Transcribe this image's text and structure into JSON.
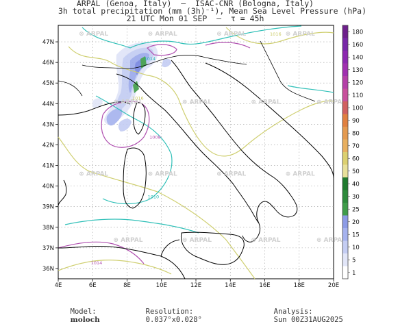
{
  "header": {
    "line1": "ARPAL (Genoa, Italy)  –  ISAC-CNR (Bologna, Italy)",
    "line2": "3h total precipitation (mm (3h)⁻¹), Mean Sea Level Pressure (hPa)",
    "line3": "21 UTC Mon 01 SEP  –  τ = 45h"
  },
  "footer": {
    "model_label": "Model:",
    "model_value": "moloch",
    "resolution_label": "Resolution:",
    "resolution_value": "0.037°x0.028°",
    "analysis_label": "Analysis:",
    "analysis_value": "Sun 00Z31AUG2025"
  },
  "watermark": "ARPAL",
  "map": {
    "lon_ticks": [
      "4E",
      "6E",
      "8E",
      "10E",
      "12E",
      "14E",
      "16E",
      "18E",
      "20E"
    ],
    "lat_ticks": [
      "47N",
      "46N",
      "45N",
      "44N",
      "43N",
      "42N",
      "41N",
      "40N",
      "39N",
      "38N",
      "37N",
      "36N"
    ],
    "lon_range": [
      4,
      20
    ],
    "lat_range": [
      35.5,
      47.8
    ],
    "grid": true,
    "isobar_labels": [
      {
        "text": "1014",
        "lon": 9.0,
        "lat": 46.1,
        "color": "#22b8b0"
      },
      {
        "text": "1016",
        "lon": 16.3,
        "lat": 47.3,
        "color": "#c8c860"
      },
      {
        "text": "1016",
        "lon": 8.3,
        "lat": 44.2,
        "color": "#c8c860"
      },
      {
        "text": "1008",
        "lon": 9.3,
        "lat": 42.3,
        "color": "#b050b0"
      },
      {
        "text": "1010",
        "lon": 9.2,
        "lat": 39.4,
        "color": "#22b8b0"
      },
      {
        "text": "1014",
        "lon": 5.9,
        "lat": 36.2,
        "color": "#b050b0"
      }
    ]
  },
  "colorbar": {
    "levels": [
      "1",
      "5",
      "10",
      "15",
      "20",
      "25",
      "30",
      "40",
      "50",
      "60",
      "70",
      "80",
      "90",
      "100",
      "110",
      "120",
      "130",
      "140",
      "160",
      "180"
    ],
    "colors": [
      "#ffffff",
      "#e2e6f8",
      "#c4cdf3",
      "#a5b2ee",
      "#8c9be6",
      "#3f9c4a",
      "#2e8a3c",
      "#1f7a2e",
      "#e8e09a",
      "#dcd070",
      "#e8b060",
      "#e49a50",
      "#e08040",
      "#d06060",
      "#c8509c",
      "#b440a8",
      "#a030b0",
      "#8c28b0",
      "#7828a8",
      "#6e208c"
    ]
  }
}
